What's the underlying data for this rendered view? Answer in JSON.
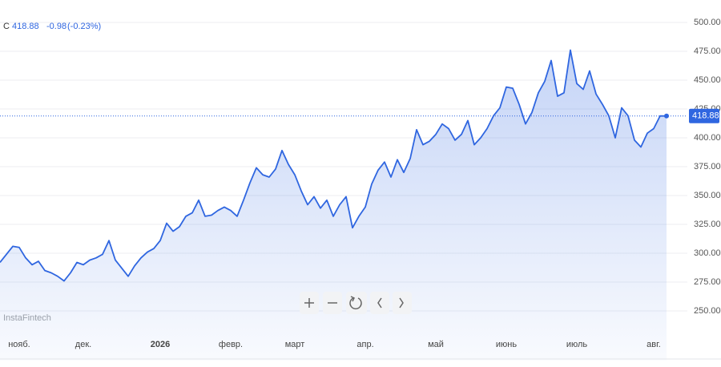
{
  "chart_data": {
    "type": "line",
    "header": {
      "symbol": "C",
      "close": 418.88,
      "change": -0.98,
      "change_pct": "(-0.23%)"
    },
    "watermark": "InstaFintech",
    "color": "#2f66e0",
    "last_value": 418.88,
    "ylim": [
      235,
      507
    ],
    "yticks": [
      {
        "value": 250,
        "label": "250.00"
      },
      {
        "value": 275,
        "label": "275.00"
      },
      {
        "value": 300,
        "label": "300.00"
      },
      {
        "value": 325,
        "label": "325.00"
      },
      {
        "value": 350,
        "label": "350.00"
      },
      {
        "value": 375,
        "label": "375.00"
      },
      {
        "value": 400,
        "label": "400.00"
      },
      {
        "value": 425,
        "label": "425.00"
      },
      {
        "value": 450,
        "label": "450.00"
      },
      {
        "value": 475,
        "label": "475.00"
      },
      {
        "value": 500,
        "label": "500.00"
      }
    ],
    "grid": true,
    "categories": [
      null,
      null,
      null,
      "нояб.",
      null,
      null,
      null,
      null,
      null,
      null,
      null,
      null,
      null,
      "дек.",
      null,
      null,
      null,
      null,
      null,
      null,
      null,
      null,
      null,
      null,
      null,
      "2026",
      null,
      null,
      null,
      null,
      null,
      null,
      null,
      null,
      null,
      null,
      "февр.",
      null,
      null,
      null,
      null,
      null,
      null,
      null,
      null,
      null,
      "март",
      null,
      null,
      null,
      null,
      null,
      null,
      null,
      null,
      null,
      null,
      "апр.",
      null,
      null,
      null,
      null,
      null,
      null,
      null,
      null,
      null,
      null,
      "май",
      null,
      null,
      null,
      null,
      null,
      null,
      null,
      null,
      null,
      null,
      "июнь",
      null,
      null,
      null,
      null,
      null,
      null,
      null,
      null,
      null,
      null,
      "июль",
      null,
      null,
      null,
      null,
      null,
      null,
      null,
      null,
      null,
      null,
      null,
      "авг.",
      null,
      null
    ],
    "values": [
      292,
      299,
      306,
      305,
      296,
      290,
      293,
      285,
      283,
      280,
      276,
      283,
      292,
      290,
      294,
      296,
      299,
      311,
      294,
      287,
      280,
      289,
      296,
      301,
      304,
      311,
      326,
      319,
      323,
      332,
      335,
      346,
      332,
      333,
      337,
      340,
      337,
      332,
      346,
      361,
      374,
      368,
      366,
      373,
      389,
      377,
      368,
      354,
      342,
      349,
      339,
      346,
      332,
      342,
      349,
      322,
      332,
      340,
      360,
      372,
      379,
      366,
      381,
      370,
      382,
      407,
      394,
      397,
      403,
      412,
      408,
      398,
      403,
      415,
      394,
      400,
      408,
      419,
      426,
      444,
      443,
      429,
      412,
      422,
      439,
      449,
      467,
      436,
      439,
      476,
      447,
      442,
      458,
      438,
      429,
      419,
      400,
      426,
      419,
      398,
      392,
      404,
      408,
      419,
      418.88
    ]
  }
}
